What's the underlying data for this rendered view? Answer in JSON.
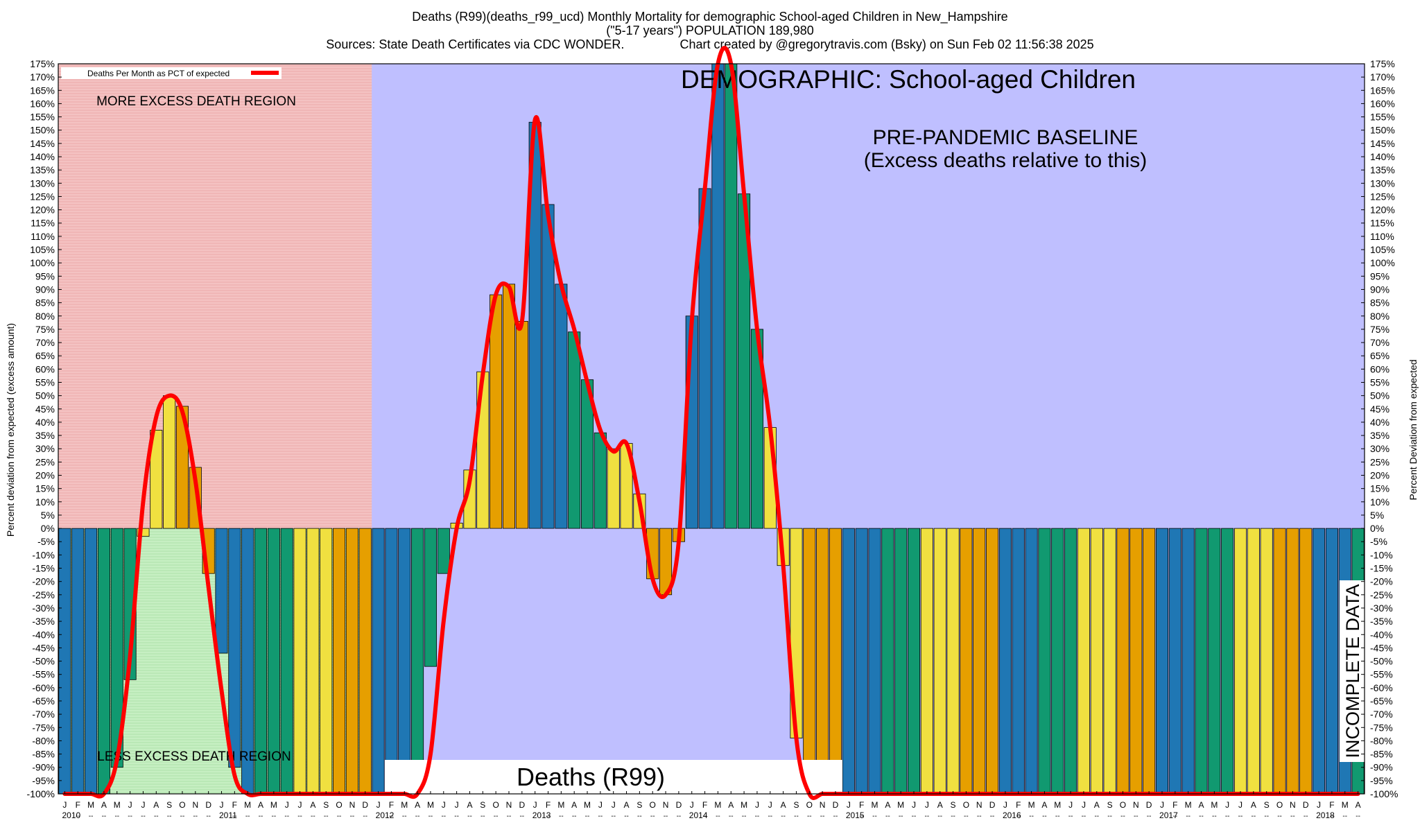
{
  "title": {
    "line1": "Deaths (R99)(deaths_r99_ucd) Monthly Mortality for demographic School-aged Children in New_Hampshire",
    "line2": "(\"5-17 years\") POPULATION 189,980",
    "line3": "Sources: State Death Certificates via CDC WONDER.                Chart created by @gregorytravis.com (Bsky) on Sun Feb 02 11:56:38 2025"
  },
  "labels": {
    "ylabel_left": "Percent deviation from expected (excess amount)",
    "ylabel_right": "Percent Deviation from expected",
    "legend": "Deaths Per Month as PCT of expected",
    "more_region": "MORE EXCESS DEATH REGION",
    "less_region": "LESS EXCESS DEATH REGION",
    "demographic": "DEMOGRAPHIC: School-aged Children",
    "baseline1": "PRE-PANDEMIC BASELINE",
    "baseline2": "(Excess deaths relative to this)",
    "cause_box": "Deaths (R99)",
    "incomplete": "INCOMPLETE DATA"
  },
  "colors": {
    "more_region": "#f4c2c2",
    "less_region": "#c6efc2",
    "baseline_region": "#bfbfff",
    "smooth_line": "#ff0000",
    "month_palette": [
      "#1f77b4",
      "#1f77b4",
      "#1f77b4",
      "#119970",
      "#119970",
      "#119970",
      "#f0e040",
      "#f0e040",
      "#f0e040",
      "#e69f00",
      "#e69f00",
      "#e69f00"
    ]
  },
  "chart_data": {
    "type": "bar",
    "ylim": [
      -100,
      175
    ],
    "ytick_step": 5,
    "ytick_labels": [
      "175%",
      "170%",
      "165%",
      "160%",
      "155%",
      "150%",
      "145%",
      "140%",
      "135%",
      "130%",
      "125%",
      "120%",
      "115%",
      "110%",
      "105%",
      "100%",
      "95%",
      "90%",
      "85%",
      "80%",
      "75%",
      "70%",
      "65%",
      "60%",
      "55%",
      "50%",
      "45%",
      "40%",
      "35%",
      "30%",
      "25%",
      "20%",
      "15%",
      "10%",
      "5%",
      "0%",
      "-5%",
      "-10%",
      "-15%",
      "-20%",
      "-25%",
      "-30%",
      "-35%",
      "-40%",
      "-45%",
      "-50%",
      "-55%",
      "-60%",
      "-65%",
      "-70%",
      "-75%",
      "-80%",
      "-85%",
      "-90%",
      "-95%",
      "-100%"
    ],
    "x_month_labels": [
      "J",
      "F",
      "M",
      "A",
      "M",
      "J",
      "J",
      "A",
      "S",
      "O",
      "N",
      "D",
      "J",
      "F",
      "M",
      "A",
      "M",
      "J",
      "J",
      "A",
      "S",
      "O",
      "N",
      "D",
      "J",
      "F",
      "M",
      "A",
      "M",
      "J",
      "J",
      "A",
      "S",
      "O",
      "N",
      "D",
      "J",
      "F",
      "M",
      "A",
      "M",
      "J",
      "J",
      "A",
      "S",
      "O",
      "N",
      "D",
      "J",
      "F",
      "M",
      "A",
      "M",
      "J",
      "J",
      "A",
      "S",
      "O",
      "N",
      "D",
      "J",
      "F",
      "M",
      "A",
      "M",
      "J",
      "J",
      "A",
      "S",
      "O",
      "N",
      "D",
      "J",
      "F",
      "M",
      "A",
      "M",
      "J",
      "J",
      "A",
      "S",
      "O",
      "N",
      "D",
      "J",
      "F",
      "M",
      "A",
      "M",
      "J",
      "J",
      "A",
      "S",
      "O",
      "N",
      "D",
      "J",
      "F",
      "M",
      "A"
    ],
    "x_year_labels": [
      "2010",
      "2011",
      "2012",
      "2013",
      "2014",
      "2015",
      "2016",
      "2017",
      "2018"
    ],
    "values": [
      -100,
      -100,
      -100,
      -100,
      -90,
      -57,
      -3,
      37,
      50,
      46,
      23,
      -17,
      -47,
      -90,
      -100,
      -100,
      -100,
      -100,
      -100,
      -100,
      -100,
      -100,
      -100,
      -100,
      -100,
      -100,
      -100,
      -100,
      -52,
      -17,
      2,
      22,
      59,
      88,
      92,
      78,
      153,
      122,
      92,
      74,
      56,
      36,
      30,
      32,
      13,
      -19,
      -25,
      -5,
      80,
      128,
      175,
      175,
      126,
      75,
      38,
      -14,
      -79,
      -100,
      -100,
      -100,
      -100,
      -100,
      -100,
      -100,
      -100,
      -100,
      -100,
      -100,
      -100,
      -100,
      -100,
      -100,
      -100,
      -100,
      -100,
      -100,
      -100,
      -100,
      -100,
      -100,
      -100,
      -100,
      -100,
      -100,
      -100,
      -100,
      -100,
      -100,
      -100,
      -100,
      -100,
      -100,
      -100,
      -100,
      -100,
      -100,
      -100,
      -100,
      -100,
      -100
    ],
    "smoothed": [
      -100,
      -100,
      -100,
      -100,
      -87,
      -48,
      10,
      42,
      50,
      44,
      18,
      -22,
      -61,
      -93,
      -100,
      -100,
      -100,
      -100,
      -100,
      -100,
      -100,
      -100,
      -100,
      -100,
      -100,
      -100,
      -100,
      -100,
      -85,
      -35,
      0,
      18,
      58,
      88,
      91,
      78,
      154,
      118,
      92,
      75,
      55,
      37,
      29,
      32,
      10,
      -19,
      -25,
      -5,
      78,
      128,
      175,
      175,
      126,
      75,
      38,
      -14,
      -79,
      -100,
      -100,
      -100,
      -100,
      -100,
      -100,
      -100,
      -100,
      -100,
      -100,
      -100,
      -100,
      -100,
      -100,
      -100,
      -100,
      -100,
      -100,
      -100,
      -100,
      -100,
      -100,
      -100,
      -100,
      -100,
      -100,
      -100,
      -100,
      -100,
      -100,
      -100,
      -100,
      -100,
      -100,
      -100,
      -100,
      -100,
      -100,
      -100,
      -100,
      -100,
      -100,
      -100
    ]
  }
}
